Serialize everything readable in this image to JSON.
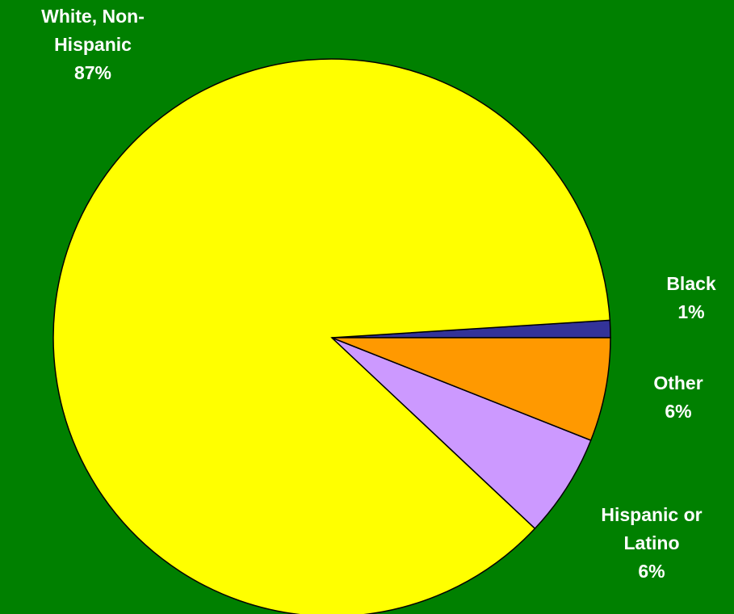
{
  "chart_data": {
    "type": "pie",
    "start_angle_deg": 0,
    "direction": "counterclockwise",
    "slices": [
      {
        "name": "Black",
        "value": 1,
        "label_lines": [
          "Black",
          "1%"
        ],
        "color": "#333399"
      },
      {
        "name": "White, Non-Hispanic",
        "value": 87,
        "label_lines": [
          "White, Non-",
          "Hispanic",
          "87%"
        ],
        "color": "#FFFF00"
      },
      {
        "name": "Hispanic or Latino",
        "value": 6,
        "label_lines": [
          "Hispanic or",
          "Latino",
          "6%"
        ],
        "color": "#CC99FF"
      },
      {
        "name": "Other",
        "value": 6,
        "label_lines": [
          "Other",
          "6%"
        ],
        "color": "#FF9900"
      }
    ],
    "legend": "none",
    "background_color": "#008000",
    "label_color": "#FFFFFF"
  }
}
